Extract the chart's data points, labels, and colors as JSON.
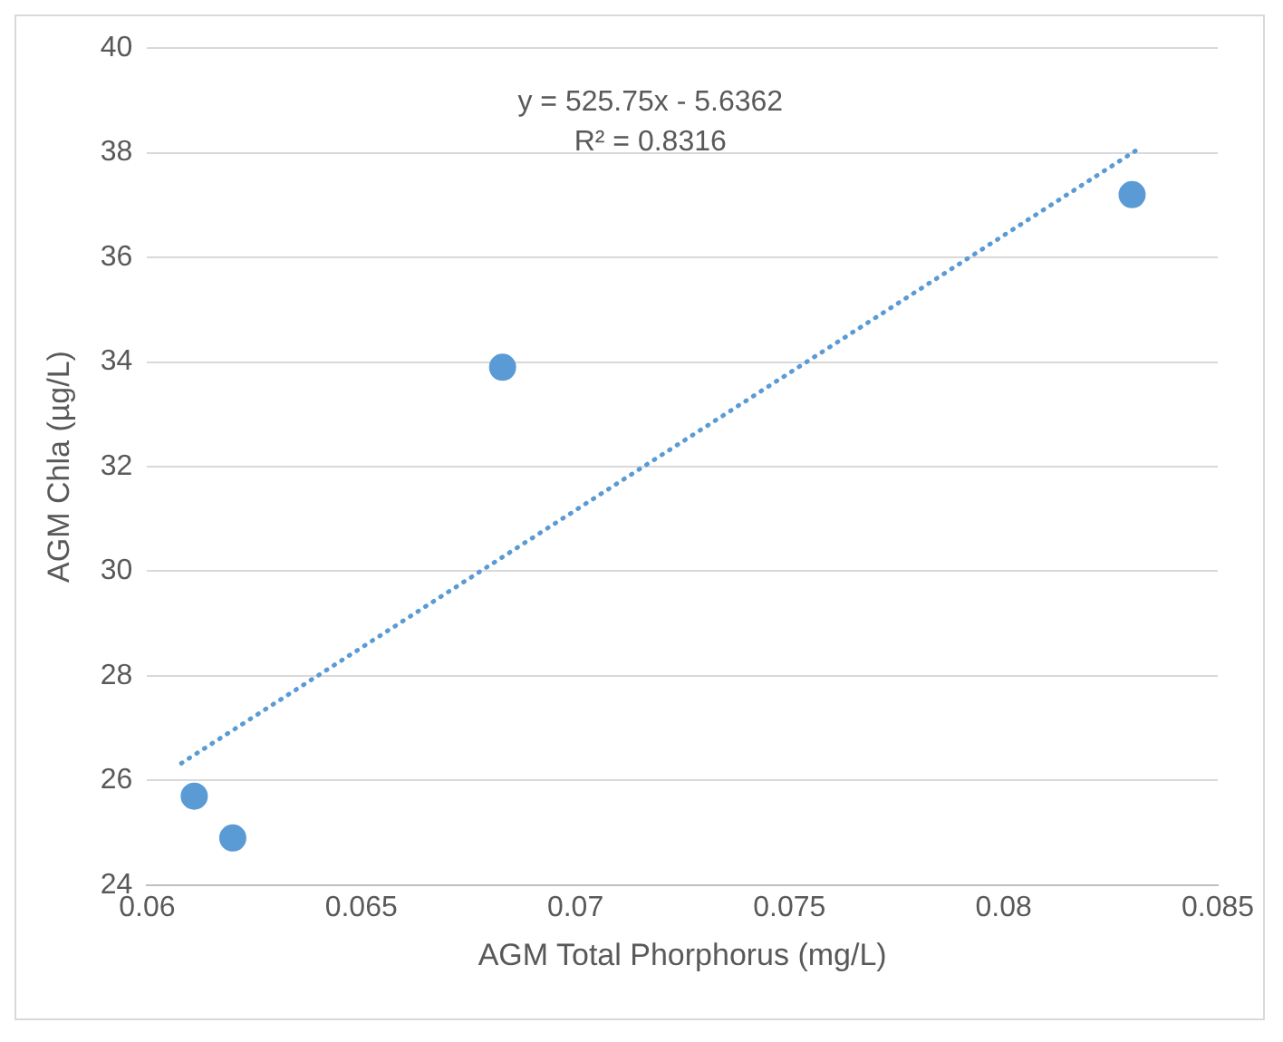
{
  "chart_data": {
    "type": "scatter",
    "xlabel": "AGM Total Phorphorus (mg/L)",
    "ylabel": "AGM Chla (µg/L)",
    "annotations": [
      "y = 525.75x - 5.6362",
      "R² = 0.8316"
    ],
    "series": [
      {
        "type": "scatter",
        "color": "#5b9bd5",
        "marker": "circle",
        "x": [
          0.0611,
          0.062,
          0.0683,
          0.083
        ],
        "values": [
          25.7,
          24.9,
          33.9,
          37.2
        ]
      },
      {
        "type": "line",
        "color": "#5b9bd5",
        "line_style": "dotted",
        "marker": "none",
        "x": [
          0.0608,
          0.0831
        ],
        "values": [
          26.33,
          38.05
        ]
      }
    ],
    "xlim": [
      0.06,
      0.085
    ],
    "xticks": [
      0.06,
      0.065,
      0.07,
      0.075,
      0.08,
      0.085
    ],
    "ylim": [
      24,
      40
    ],
    "yticks": [
      24,
      26,
      28,
      30,
      32,
      34,
      36,
      38,
      40
    ],
    "grid": "y",
    "legend": false
  }
}
